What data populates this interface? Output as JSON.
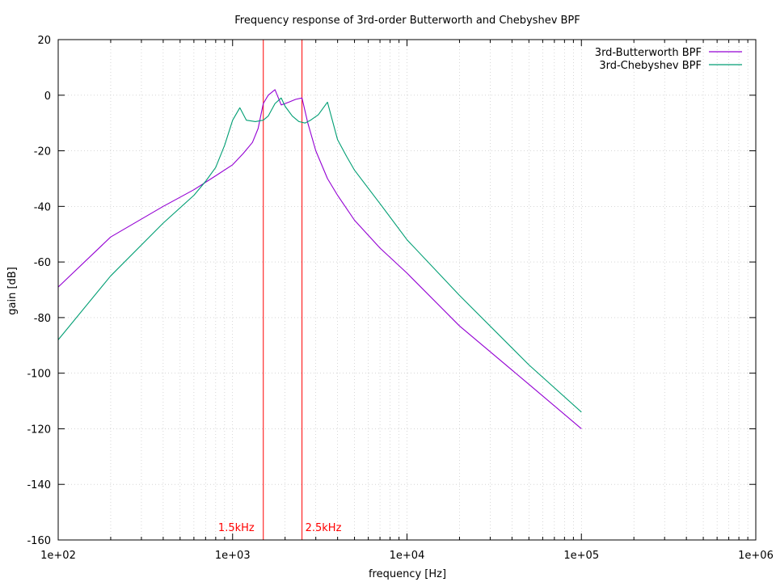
{
  "chart_data": {
    "type": "line",
    "title": "Frequency response of 3rd-order Butterworth and Chebyshev BPF",
    "xlabel": "frequency [Hz]",
    "ylabel": "gain [dB]",
    "xscale": "log",
    "xlim": [
      100,
      1000000
    ],
    "ylim": [
      -160,
      20
    ],
    "xticks": [
      100,
      1000,
      10000,
      100000,
      1000000
    ],
    "xtick_labels": [
      "1e+02",
      "1e+03",
      "1e+04",
      "1e+05",
      "1e+06"
    ],
    "yticks": [
      -160,
      -140,
      -120,
      -100,
      -80,
      -60,
      -40,
      -20,
      0,
      20
    ],
    "ytick_labels": [
      "-160",
      "-140",
      "-120",
      "-100",
      "-80",
      "-60",
      "-40",
      "-20",
      "0",
      "20"
    ],
    "grid": true,
    "legend_position": "top-right",
    "series": [
      {
        "name": "3rd-Butterworth BPF",
        "color": "#9400d3",
        "x": [
          100,
          200,
          400,
          600,
          800,
          1000,
          1150,
          1300,
          1400,
          1500,
          1600,
          1750,
          1900,
          2100,
          2300,
          2500,
          2700,
          3000,
          3500,
          4000,
          5000,
          7000,
          10000,
          20000,
          50000,
          100000
        ],
        "y": [
          -69,
          -51,
          -40,
          -34,
          -29,
          -25,
          -21,
          -17,
          -12,
          -3,
          0,
          2,
          -3.5,
          -2.5,
          -1.5,
          -1,
          -10,
          -20,
          -30,
          -36,
          -45,
          -55,
          -64,
          -83,
          -104,
          -120
        ]
      },
      {
        "name": "3rd-Chebyshev BPF",
        "color": "#009e73",
        "x": [
          100,
          200,
          400,
          600,
          700,
          800,
          900,
          1000,
          1100,
          1200,
          1350,
          1500,
          1600,
          1750,
          1900,
          2000,
          2200,
          2400,
          2600,
          2800,
          3100,
          3500,
          4000,
          4500,
          5000,
          7000,
          10000,
          20000,
          50000,
          100000
        ],
        "y": [
          -88,
          -65,
          -46,
          -36,
          -31,
          -26,
          -18,
          -9,
          -4.5,
          -9,
          -9.5,
          -9,
          -7.5,
          -3,
          -1,
          -4,
          -7.5,
          -9.5,
          -10,
          -9,
          -7,
          -2.5,
          -16,
          -22,
          -27,
          -39,
          -52,
          -72,
          -97,
          -114
        ]
      }
    ],
    "annotations": [
      {
        "label": "1.5kHz",
        "x": 1500,
        "color": "#ff0000"
      },
      {
        "label": "2.5kHz",
        "x": 2500,
        "color": "#ff0000"
      }
    ]
  }
}
